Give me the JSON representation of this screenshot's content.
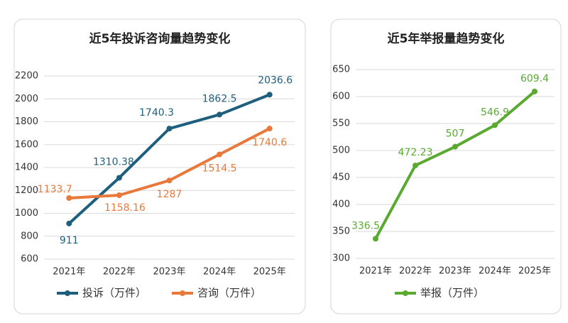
{
  "chart_data": [
    {
      "type": "line",
      "title": "近5年投诉咨询量趋势变化",
      "categories": [
        "2021年",
        "2022年",
        "2023年",
        "2024年",
        "2025年"
      ],
      "series": [
        {
          "name": "投诉（万件）",
          "color": "#1f5f7e",
          "values": [
            911,
            1310.38,
            1740.3,
            1862.5,
            2036.6
          ]
        },
        {
          "name": "咨询（万件）",
          "color": "#e8793a",
          "values": [
            1133.7,
            1158.16,
            1287,
            1514.5,
            1740.6
          ]
        }
      ],
      "ylim": [
        600,
        2200
      ],
      "yticks": [
        600,
        800,
        1000,
        1200,
        1400,
        1600,
        1800,
        2000,
        2200
      ],
      "grid": true,
      "legend": "bottom"
    },
    {
      "type": "line",
      "title": "近5年举报量趋势变化",
      "categories": [
        "2021年",
        "2022年",
        "2023年",
        "2024年",
        "2025年"
      ],
      "series": [
        {
          "name": "举报（万件）",
          "color": "#5aaa32",
          "values": [
            336.5,
            472.23,
            507,
            546.9,
            609.4
          ]
        }
      ],
      "ylim": [
        300,
        650
      ],
      "yticks": [
        300,
        350,
        400,
        450,
        500,
        550,
        600,
        650
      ],
      "grid": true,
      "legend": "bottom"
    }
  ]
}
